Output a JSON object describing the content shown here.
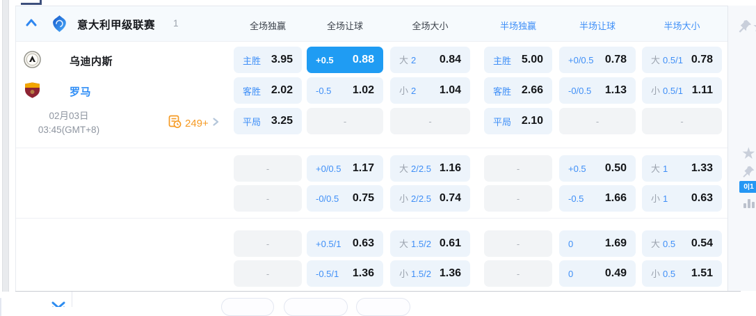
{
  "header": {
    "league": "意大利甲级联赛",
    "count": "1",
    "columns": [
      {
        "label": "全场独赢",
        "accent": false
      },
      {
        "label": "全场让球",
        "accent": false
      },
      {
        "label": "全场大小",
        "accent": false
      },
      {
        "label": "半场独赢",
        "accent": true
      },
      {
        "label": "半场让球",
        "accent": true
      },
      {
        "label": "半场大小",
        "accent": true
      }
    ]
  },
  "match": {
    "home_team": "乌迪内斯",
    "away_team": "罗马",
    "date": "02月03日",
    "time": "03:45(GMT+8)",
    "more_count": "249+"
  },
  "side": {
    "badge": "0|1"
  },
  "colors": {
    "accent": "#3f8ff7",
    "selected_bg": "#1f9cf3",
    "orange": "#f59a23"
  },
  "odds": {
    "dash": "-",
    "groups": [
      {
        "rows": [
          [
            {
              "t": "win",
              "label": "主胜",
              "value": "3.95"
            },
            {
              "t": "hcp",
              "label": "+0.5",
              "value": "0.88",
              "selected": true
            },
            {
              "t": "ou",
              "side": "大",
              "line": "2",
              "value": "0.84"
            },
            {
              "t": "win",
              "label": "主胜",
              "value": "5.00"
            },
            {
              "t": "hcp",
              "label": "+0/0.5",
              "value": "0.78"
            },
            {
              "t": "ou",
              "side": "大",
              "line": "0.5/1",
              "value": "0.78"
            }
          ],
          [
            {
              "t": "win",
              "label": "客胜",
              "value": "2.02"
            },
            {
              "t": "hcp",
              "label": "-0.5",
              "value": "1.02"
            },
            {
              "t": "ou",
              "side": "小",
              "line": "2",
              "value": "1.04"
            },
            {
              "t": "win",
              "label": "客胜",
              "value": "2.66"
            },
            {
              "t": "hcp",
              "label": "-0/0.5",
              "value": "1.13"
            },
            {
              "t": "ou",
              "side": "小",
              "line": "0.5/1",
              "value": "1.11"
            }
          ],
          [
            {
              "t": "win",
              "label": "平局",
              "value": "3.25"
            },
            {
              "t": "empty"
            },
            {
              "t": "empty"
            },
            {
              "t": "win",
              "label": "平局",
              "value": "2.10"
            },
            {
              "t": "empty"
            },
            {
              "t": "empty"
            }
          ]
        ]
      },
      {
        "rows": [
          [
            {
              "t": "empty"
            },
            {
              "t": "hcp",
              "label": "+0/0.5",
              "value": "1.17"
            },
            {
              "t": "ou",
              "side": "大",
              "line": "2/2.5",
              "value": "1.16"
            },
            {
              "t": "empty"
            },
            {
              "t": "hcp",
              "label": "+0.5",
              "value": "0.50"
            },
            {
              "t": "ou",
              "side": "大",
              "line": "1",
              "value": "1.33"
            }
          ],
          [
            {
              "t": "empty"
            },
            {
              "t": "hcp",
              "label": "-0/0.5",
              "value": "0.75"
            },
            {
              "t": "ou",
              "side": "小",
              "line": "2/2.5",
              "value": "0.74"
            },
            {
              "t": "empty"
            },
            {
              "t": "hcp",
              "label": "-0.5",
              "value": "1.66"
            },
            {
              "t": "ou",
              "side": "小",
              "line": "1",
              "value": "0.63"
            }
          ]
        ]
      },
      {
        "rows": [
          [
            {
              "t": "empty"
            },
            {
              "t": "hcp",
              "label": "+0.5/1",
              "value": "0.63"
            },
            {
              "t": "ou",
              "side": "大",
              "line": "1.5/2",
              "value": "0.61"
            },
            {
              "t": "empty"
            },
            {
              "t": "hcp",
              "label": "0",
              "value": "1.69"
            },
            {
              "t": "ou",
              "side": "大",
              "line": "0.5",
              "value": "0.54"
            }
          ],
          [
            {
              "t": "empty"
            },
            {
              "t": "hcp",
              "label": "-0.5/1",
              "value": "1.36"
            },
            {
              "t": "ou",
              "side": "小",
              "line": "1.5/2",
              "value": "1.36"
            },
            {
              "t": "empty"
            },
            {
              "t": "hcp",
              "label": "0",
              "value": "0.49"
            },
            {
              "t": "ou",
              "side": "小",
              "line": "0.5",
              "value": "1.51"
            }
          ]
        ]
      }
    ]
  }
}
